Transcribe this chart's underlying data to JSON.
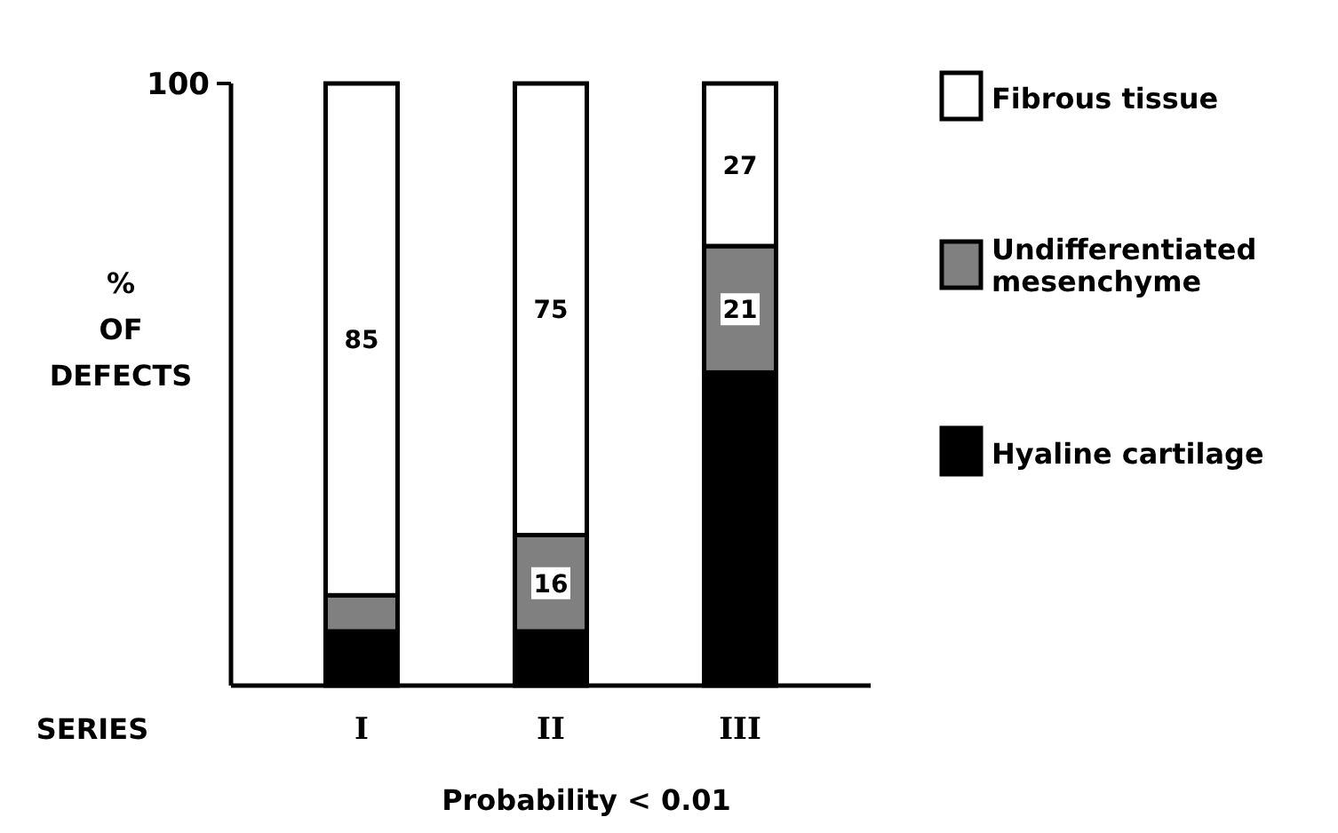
{
  "chart_data": {
    "type": "bar",
    "stacked": true,
    "categories": [
      "I",
      "II",
      "III"
    ],
    "series": [
      {
        "name": "Hyaline cartilage",
        "color": "#000000",
        "values": [
          9,
          9,
          52
        ]
      },
      {
        "name": "Undifferentiated mesenchyme",
        "color": "#808080",
        "values": [
          6,
          16,
          21
        ],
        "value_labels": [
          null,
          "16",
          "21"
        ]
      },
      {
        "name": "Fibrous tissue",
        "color": "#ffffff",
        "values": [
          85,
          75,
          27
        ],
        "value_labels": [
          "85",
          "75",
          "27"
        ]
      }
    ],
    "ylabel": "% OF DEFECTS",
    "xlabel": "SERIES",
    "ylim": [
      0,
      100
    ],
    "yticks": [
      100
    ],
    "legend": "right",
    "grid": false,
    "annotations": [
      "Probability < 0.01"
    ]
  }
}
